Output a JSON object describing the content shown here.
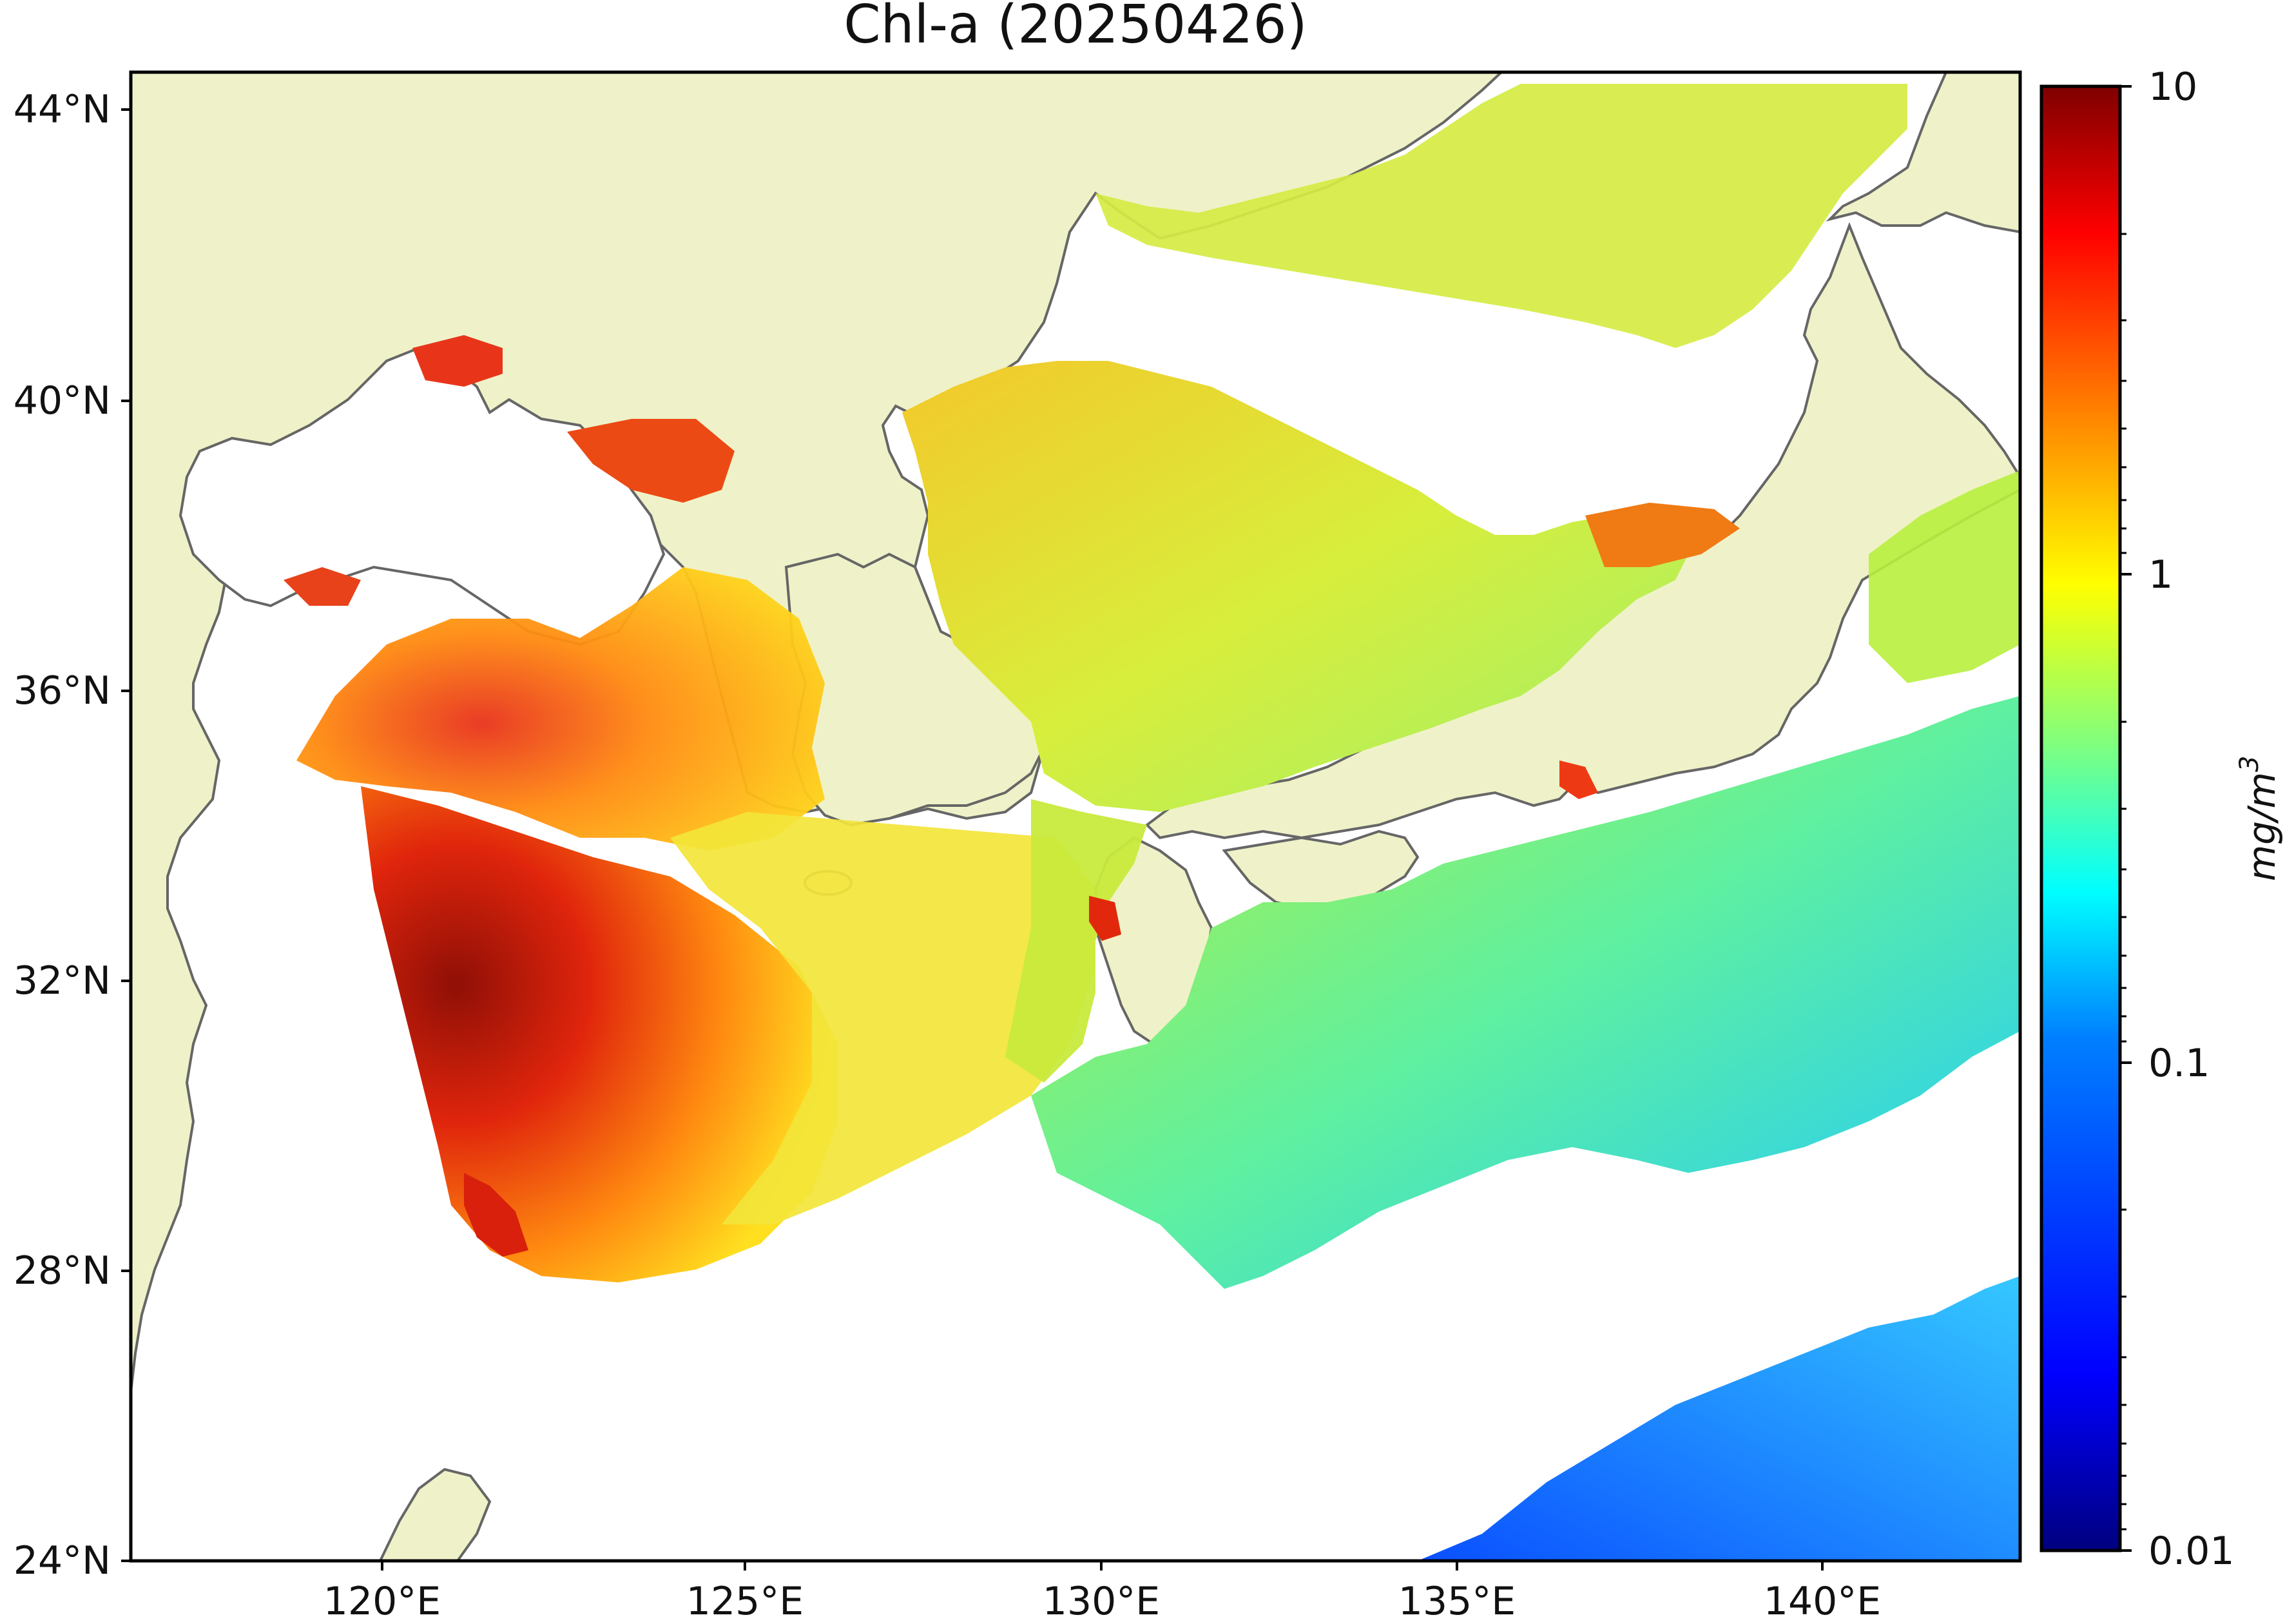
{
  "map": {
    "title": "Chl-a (20250426)",
    "lon_ticks": [
      "120°E",
      "125°E",
      "130°E",
      "135°E",
      "140°E"
    ],
    "lat_ticks": [
      "44°N",
      "40°N",
      "36°N",
      "32°N",
      "28°N",
      "24°N"
    ],
    "extent": {
      "lon_min": 116.3,
      "lon_max": 143.0,
      "lat_min": 24.0,
      "lat_max": 44.5
    },
    "colors": {
      "land": "#eff2c8",
      "coast": "#666666",
      "no_data": "#ffffff"
    }
  },
  "colorbar": {
    "unit": "mg/m",
    "unit_superscript": "3",
    "ticks": [
      "10",
      "1",
      "0.1",
      "0.01"
    ],
    "scale": "log",
    "range": [
      0.01,
      10
    ],
    "colormap": [
      "#00007f",
      "#0000ff",
      "#007fff",
      "#00ffff",
      "#7fff7f",
      "#ffff00",
      "#ff7f00",
      "#ff0000",
      "#7f0000"
    ]
  }
}
